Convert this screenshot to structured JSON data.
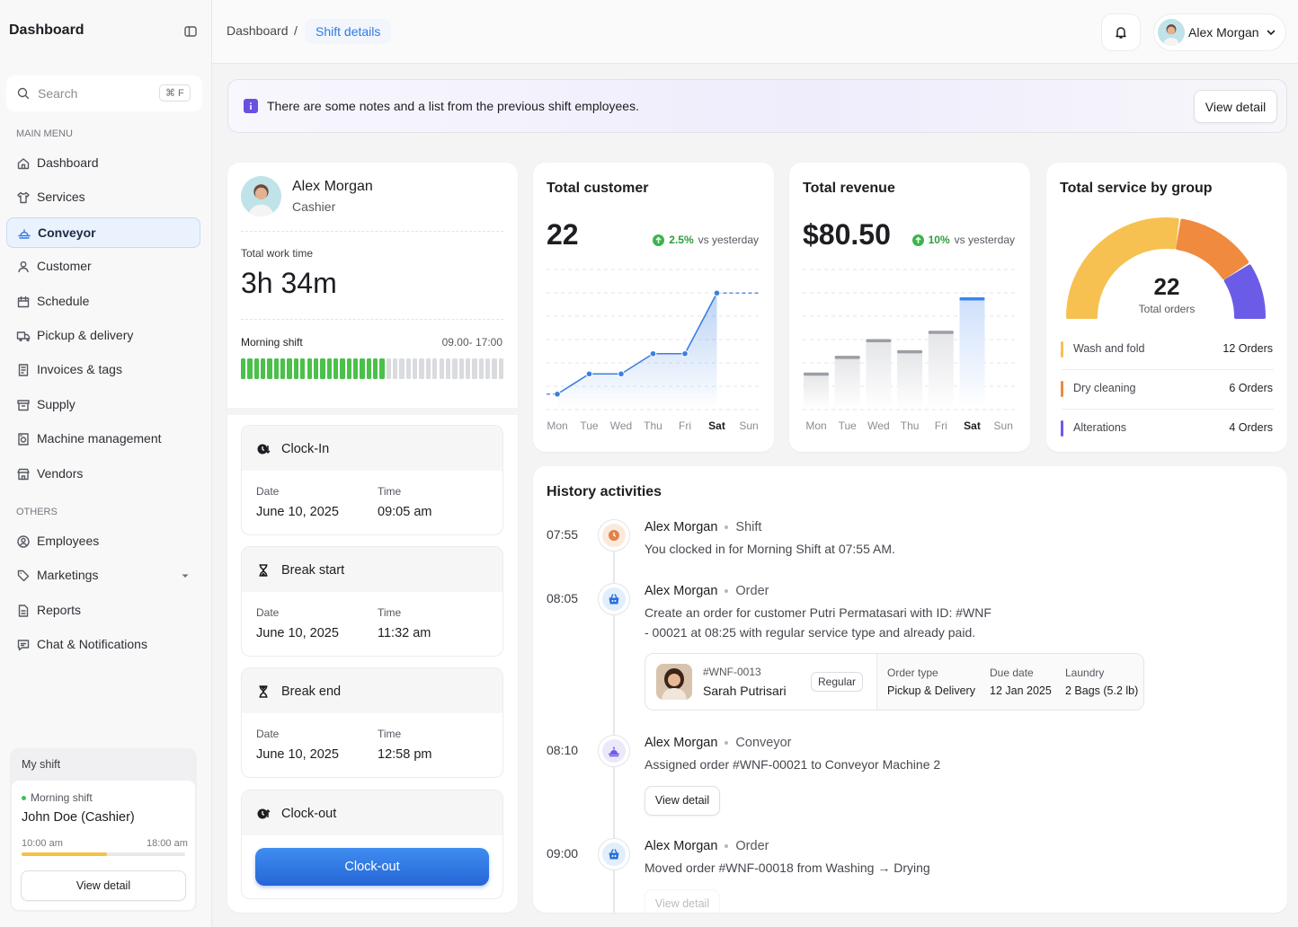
{
  "sidebar": {
    "title": "Dashboard",
    "search": "Search",
    "shortcut": "⌘ F",
    "main_menu_label": "MAIN MENU",
    "main_menu": [
      "Dashboard",
      "Services",
      "Conveyor",
      "Customer",
      "Schedule",
      "Pickup & delivery",
      "Invoices & tags",
      "Supply",
      "Machine management",
      "Vendors"
    ],
    "active_index": 2,
    "others_label": "OTHERS",
    "others": [
      "Employees",
      "Marketings",
      "Reports",
      "Chat & Notifications"
    ],
    "my_shift": {
      "title": "My shift",
      "shift": "Morning shift",
      "person": "John Doe (Cashier)",
      "start": "10:00 am",
      "end": "18:00 am",
      "progress": 52,
      "button": "View detail"
    }
  },
  "header": {
    "breadcrumb": [
      "Dashboard",
      "Shift details"
    ],
    "separator": "/",
    "user": "Alex Morgan"
  },
  "notice": {
    "text": "There are some notes and a list from the previous shift employees.",
    "button": "View detail"
  },
  "profile": {
    "name": "Alex Morgan",
    "role": "Cashier",
    "work_time_label": "Total work time",
    "work_time": "3h 34m",
    "shift": "Morning shift",
    "shift_hours": "09.00- 17:00",
    "segments_filled": 22,
    "segments_total": 40
  },
  "clock": {
    "date_label": "Date",
    "time_label": "Time",
    "events": [
      {
        "title": "Clock-In",
        "date": "June 10, 2025",
        "time": "09:05 am"
      },
      {
        "title": "Break start",
        "date": "June 10, 2025",
        "time": "11:32 am"
      },
      {
        "title": "Break end",
        "date": "June 10, 2025",
        "time": "12:58 pm"
      },
      {
        "title": "Clock-out",
        "button": "Clock-out"
      }
    ]
  },
  "chart_data": [
    {
      "type": "line",
      "title": "Total customer",
      "value": "22",
      "change": "2.5%",
      "compare": "vs yesterday",
      "categories": [
        "Mon",
        "Tue",
        "Wed",
        "Thu",
        "Fri",
        "Sat",
        "Sun"
      ],
      "values": [
        1.5,
        4.5,
        4.5,
        7.5,
        7.5,
        16.5,
        null
      ],
      "color": "#3b7fe3",
      "highlight_index": 5,
      "ylim": [
        0,
        20
      ]
    },
    {
      "type": "bar",
      "title": "Total revenue",
      "value": "$80.50",
      "change": "10%",
      "compare": "vs yesterday",
      "categories": [
        "Mon",
        "Tue",
        "Wed",
        "Thu",
        "Fri",
        "Sat",
        "Sun"
      ],
      "values": [
        13,
        19,
        25,
        21,
        28,
        40,
        null
      ],
      "color": "#9c9ea5",
      "highlight_color": "#3a86e8",
      "highlight_index": 5,
      "ylim": [
        0,
        50
      ]
    },
    {
      "type": "gauge",
      "title": "Total service by group",
      "total": "22",
      "total_label": "Total orders",
      "categories": [
        "Wash and fold",
        "Dry cleaning",
        "Alterations"
      ],
      "values": [
        12,
        6,
        4
      ],
      "value_labels": [
        "12 Orders",
        "6 Orders",
        "4 Orders"
      ],
      "colors": [
        "#f6c150",
        "#ef8a3e",
        "#6b5ce8"
      ]
    }
  ],
  "history": {
    "title": "History activities",
    "items": [
      {
        "time": "07:55",
        "name": "Alex Morgan",
        "type": "Shift",
        "text": "You clocked in for Morning Shift at 07:55 AM."
      },
      {
        "time": "08:05",
        "name": "Alex Morgan",
        "type": "Order",
        "text": "Create an order for customer Putri Permatasari with ID: #WNF - 00021 at 08:25 with regular service type and already paid.",
        "order": {
          "id": "#WNF-0013",
          "customer": "Sarah Putrisari",
          "tag": "Regular",
          "fields": [
            {
              "label": "Order type",
              "value": "Pickup & Delivery"
            },
            {
              "label": "Due date",
              "value": "12 Jan 2025"
            },
            {
              "label": "Laundry",
              "value": "2 Bags (5.2 lb)"
            }
          ]
        }
      },
      {
        "time": "08:10",
        "name": "Alex Morgan",
        "type": "Conveyor",
        "text": "Assigned order #WNF-00021 to Conveyor Machine 2",
        "button": "View detail"
      },
      {
        "time": "09:00",
        "name": "Alex Morgan",
        "type": "Order",
        "text": "Moved order #WNF-00018 from Washing → Drying",
        "button": "View detail"
      }
    ]
  }
}
